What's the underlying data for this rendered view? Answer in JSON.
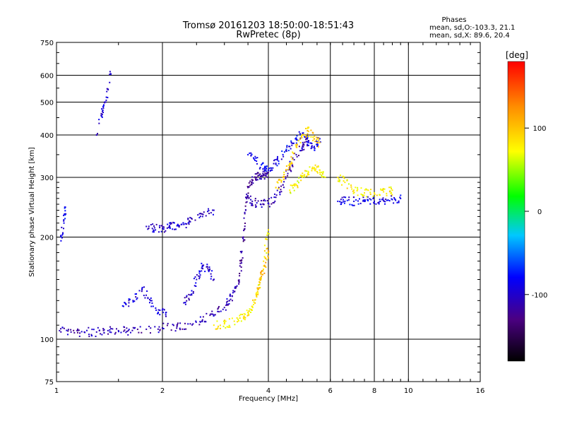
{
  "header": {
    "title_line1": "Tromsø 20161203 18:50:00-18:51:43",
    "title_line2": "RwPretec (8p)",
    "stats_heading": "Phases",
    "stats_o": "mean, sd,O:-103.3, 21.1",
    "stats_x": "mean, sd,X:  89.6, 20.4"
  },
  "chart_data": {
    "type": "scatter",
    "title": "Tromsø 20161203 18:50:00-18:51:43",
    "subtitle": "RwPretec (8p)",
    "xlabel": "Frequency [MHz]",
    "ylabel": "Stationary phase Virtual Height [km]",
    "x_scale": "log",
    "y_scale": "log",
    "xlim": [
      1,
      16
    ],
    "ylim": [
      75,
      750
    ],
    "x_ticks": [
      1,
      2,
      4,
      6,
      8,
      10,
      16
    ],
    "x_tick_labels": [
      "1",
      "2",
      "4",
      "6",
      "8",
      "10",
      "16"
    ],
    "x_grid": [
      2,
      4,
      6,
      8,
      10
    ],
    "y_ticks": [
      75,
      100,
      200,
      300,
      400,
      500,
      600,
      750
    ],
    "y_tick_labels": [
      "75",
      "100",
      "200",
      "300",
      "400",
      "500",
      "600",
      "750"
    ],
    "y_grid": [
      100,
      200,
      300,
      400,
      500,
      600
    ],
    "grid": true,
    "colorbar": {
      "label": "[deg]",
      "range": [
        -180,
        180
      ],
      "ticks": [
        100,
        0,
        -100
      ],
      "tick_labels": [
        "100",
        "0",
        "-100"
      ],
      "colormap": "rainbow",
      "colors": [
        "#000000",
        "#4b0082",
        "#0000ff",
        "#00c8ff",
        "#00ff00",
        "#ffff00",
        "#ff8c00",
        "#ff0000"
      ]
    },
    "series": [
      {
        "mode": "O",
        "phase_mean": -103.3,
        "phase_sd": 21.1,
        "traces": [
          {
            "x": [
              1.02,
              1.1,
              1.2,
              1.3,
              1.4,
              1.5,
              1.6,
              1.8,
              2.0,
              2.2,
              2.4,
              2.6,
              2.8,
              3.0,
              3.1,
              3.2,
              3.3
            ],
            "y": [
              106,
              105,
              105,
              105,
              106,
              106,
              106,
              107,
              108,
              109,
              111,
              114,
              118,
              124,
              130,
              138,
              148
            ],
            "phase": -110
          },
          {
            "x": [
              3.3,
              3.35,
              3.4,
              3.45,
              3.5,
              3.6,
              3.7,
              3.8,
              3.9,
              4.0
            ],
            "y": [
              148,
              170,
              200,
              240,
              280,
              295,
              300,
              302,
              305,
              310
            ],
            "phase": -120
          },
          {
            "x": [
              3.45,
              3.6,
              3.8,
              4.0,
              4.2,
              4.4,
              4.6,
              4.8,
              5.0,
              5.2
            ],
            "y": [
              262,
              255,
              250,
              252,
              262,
              285,
              320,
              350,
              370,
              385
            ],
            "phase": -110
          },
          {
            "x": [
              3.5,
              3.7,
              3.9,
              4.0,
              4.2,
              4.4,
              4.6,
              4.8,
              5.0,
              5.2,
              5.4,
              5.6
            ],
            "y": [
              350,
              335,
              320,
              315,
              330,
              350,
              370,
              390,
              405,
              380,
              370,
              390
            ],
            "phase": -85
          },
          {
            "x": [
              1.55,
              1.65,
              1.75,
              1.85,
              1.95,
              2.05
            ],
            "y": [
              125,
              130,
              140,
              130,
              122,
              120
            ],
            "phase": -95
          },
          {
            "x": [
              2.3,
              2.4,
              2.5,
              2.6,
              2.7,
              2.8
            ],
            "y": [
              128,
              135,
              150,
              165,
              160,
              150
            ],
            "phase": -100
          },
          {
            "x": [
              1.8,
              1.9,
              2.0,
              2.1,
              2.2,
              2.3,
              2.4,
              2.6,
              2.8
            ],
            "y": [
              215,
              213,
              212,
              214,
              216,
              218,
              222,
              230,
              240
            ],
            "phase": -100
          },
          {
            "x": [
              1.3,
              1.35,
              1.38,
              1.42
            ],
            "y": [
              400,
              470,
              500,
              615
            ],
            "phase": -100
          },
          {
            "x": [
              6.3,
              6.6,
              7.0,
              7.5,
              8.0,
              8.5,
              9.0,
              9.5
            ],
            "y": [
              255,
              255,
              255,
              255,
              255,
              257,
              258,
              260
            ],
            "phase": -90
          },
          {
            "x": [
              1.03,
              1.05,
              1.06
            ],
            "y": [
              195,
              220,
              245
            ],
            "phase": -85
          }
        ]
      },
      {
        "mode": "X",
        "phase_mean": 89.6,
        "phase_sd": 20.4,
        "traces": [
          {
            "x": [
              2.8,
              3.0,
              3.2,
              3.4,
              3.5,
              3.6,
              3.7,
              3.8,
              3.9,
              4.0
            ],
            "y": [
              110,
              111,
              113,
              116,
              120,
              125,
              135,
              150,
              175,
              210
            ],
            "phase": 80
          },
          {
            "x": [
              3.7,
              3.8,
              3.9,
              4.0
            ],
            "y": [
              135,
              150,
              165,
              180
            ],
            "phase": 105
          },
          {
            "x": [
              4.6,
              4.8,
              5.0,
              5.2,
              5.4,
              5.6,
              5.8
            ],
            "y": [
              275,
              285,
              300,
              310,
              320,
              315,
              300
            ],
            "phase": 75
          },
          {
            "x": [
              4.2,
              4.4,
              4.6,
              4.8,
              5.0,
              5.2,
              5.4,
              5.6
            ],
            "y": [
              280,
              300,
              330,
              370,
              400,
              410,
              390,
              380
            ],
            "phase": 95
          },
          {
            "x": [
              6.3,
              6.6,
              7.0,
              7.5,
              8.0,
              8.5,
              9.0
            ],
            "y": [
              300,
              290,
              275,
              270,
              270,
              272,
              275
            ],
            "phase": 80
          }
        ]
      }
    ]
  }
}
